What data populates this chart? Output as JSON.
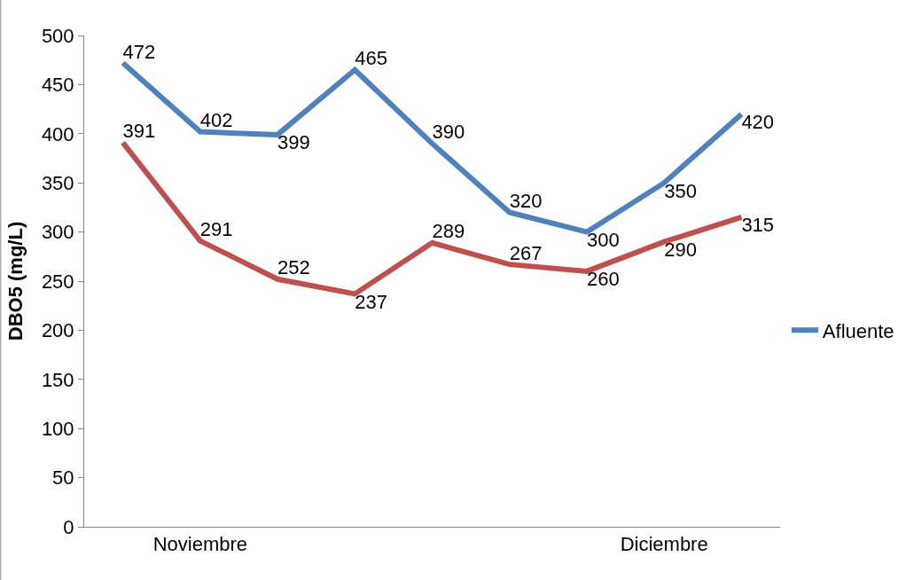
{
  "chart_data": {
    "type": "line",
    "ylabel": "DBO5 (mg/L)",
    "categories": [
      null,
      "Noviembre",
      null,
      null,
      null,
      null,
      null,
      "Diciembre",
      null
    ],
    "series": [
      {
        "name": "Afluente",
        "color": "#4f81bd",
        "values": [
          472,
          402,
          399,
          465,
          390,
          320,
          300,
          350,
          420
        ]
      },
      {
        "color": "#c0504d",
        "values": [
          391,
          291,
          252,
          237,
          289,
          267,
          260,
          290,
          315
        ]
      }
    ],
    "ylim": [
      0,
      500
    ],
    "yticks": [
      0,
      50,
      100,
      150,
      200,
      250,
      300,
      350,
      400,
      450,
      500
    ],
    "data_labels": true,
    "legend": "right",
    "marker": "none",
    "line_style": "solid"
  }
}
